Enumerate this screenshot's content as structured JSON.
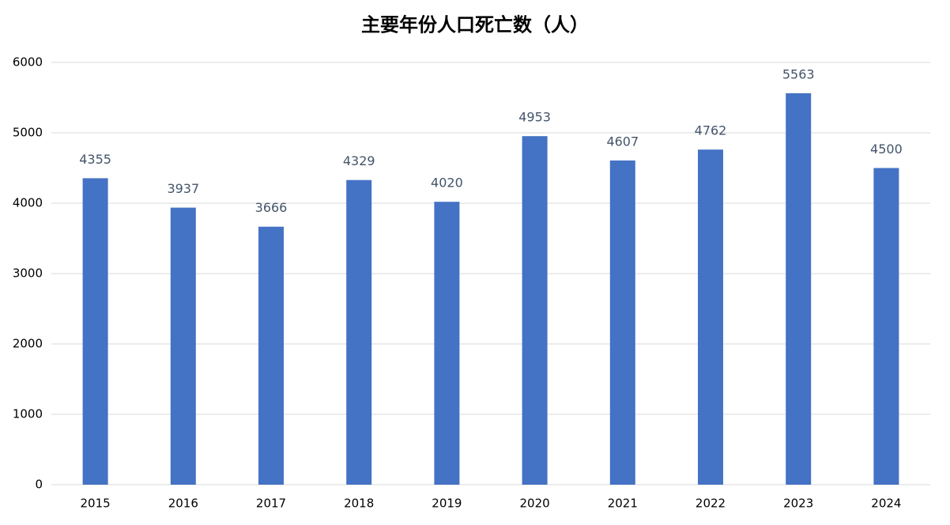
{
  "chart_data": {
    "type": "bar",
    "title": "主要年份人口死亡数（人）",
    "categories": [
      "2015",
      "2016",
      "2017",
      "2018",
      "2019",
      "2020",
      "2021",
      "2022",
      "2023",
      "2024"
    ],
    "values": [
      4355,
      3937,
      3666,
      4329,
      4020,
      4953,
      4607,
      4762,
      5563,
      4500
    ],
    "color": "#4472c4",
    "ylim": [
      0,
      6000
    ],
    "yticks": [
      0,
      1000,
      2000,
      3000,
      4000,
      5000,
      6000
    ],
    "grid": true
  }
}
